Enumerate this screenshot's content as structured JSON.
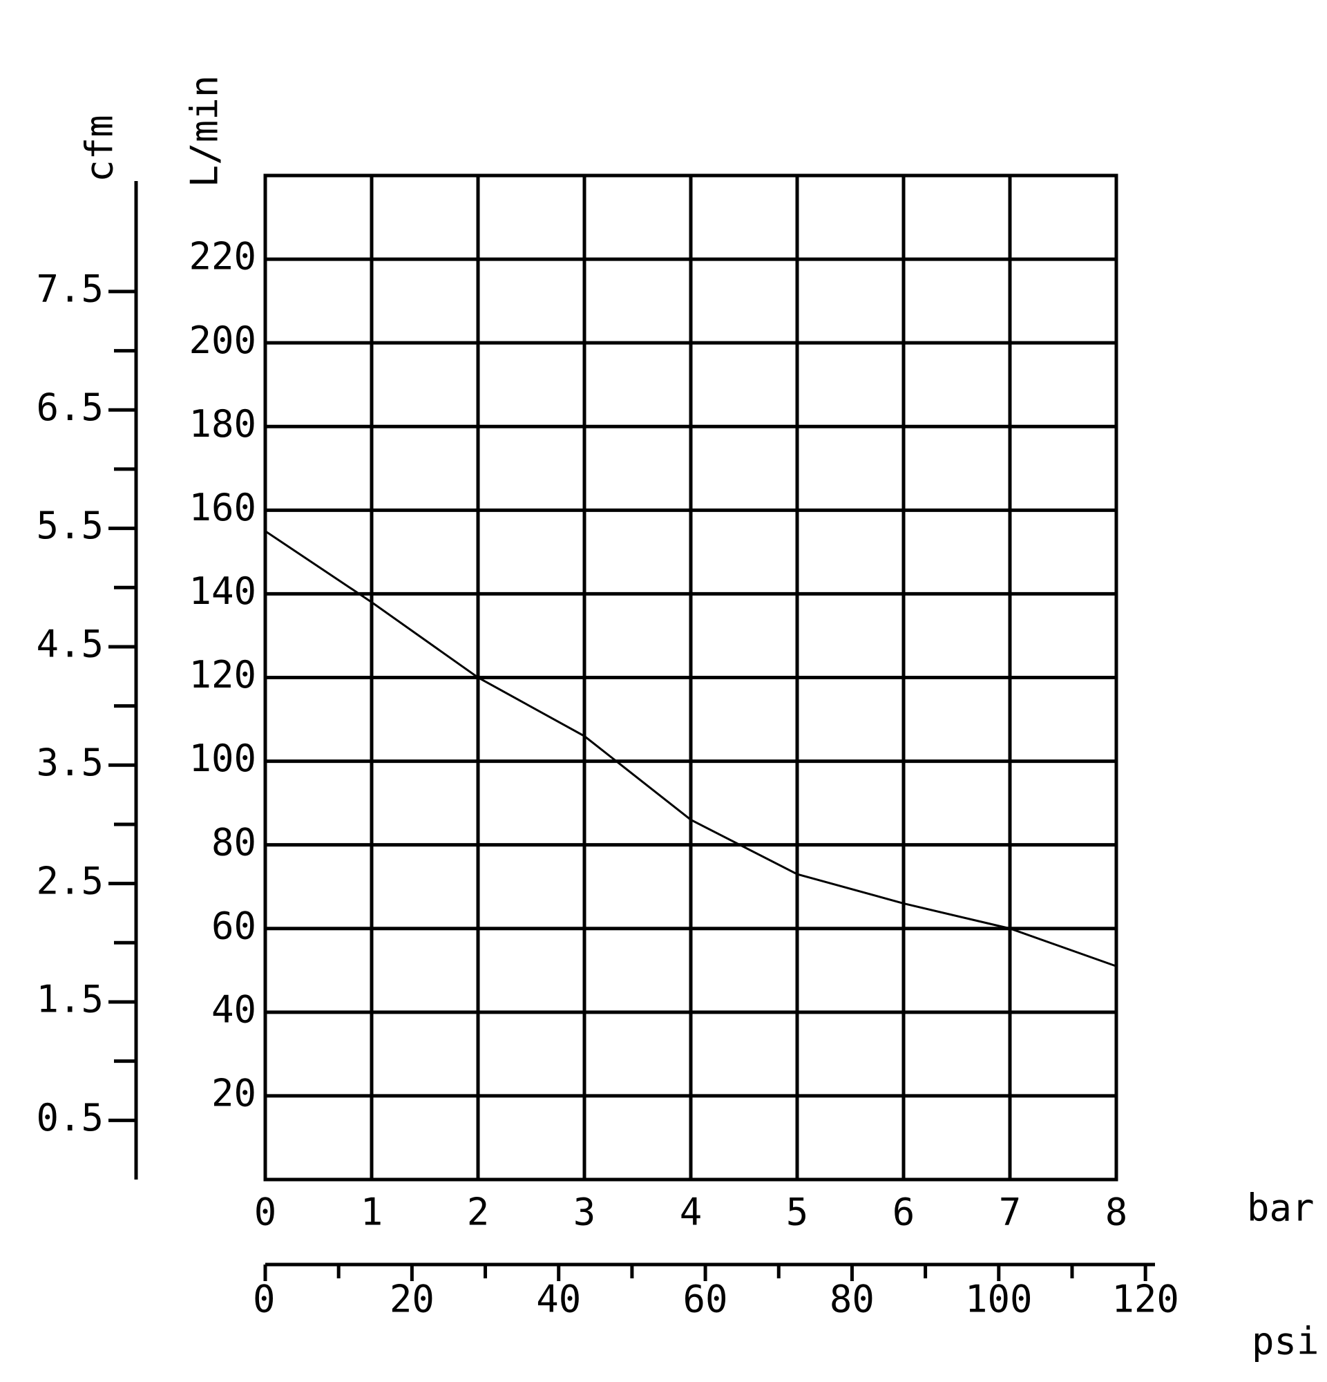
{
  "chart_data": {
    "type": "line",
    "xlabel": "bar",
    "ylabel": "L/min",
    "y2label": "cfm",
    "x2label": "psi",
    "x": [
      0,
      1,
      2,
      3,
      4,
      5,
      6,
      7,
      8
    ],
    "values": [
      155,
      138,
      120,
      106,
      86,
      73,
      66,
      60,
      51
    ],
    "color": "#000000",
    "xlim": [
      0,
      8
    ],
    "xticks": [
      0,
      1,
      2,
      3,
      4,
      5,
      6,
      7,
      8
    ],
    "ylim": [
      0,
      240
    ],
    "yticks": [
      20,
      40,
      60,
      80,
      100,
      120,
      140,
      160,
      180,
      200,
      220
    ],
    "y2lim": [
      0,
      8.48
    ],
    "y2ticks": [
      0.5,
      1.5,
      2.5,
      3.5,
      4.5,
      5.5,
      6.5,
      7.5
    ],
    "y2minor_ticks": [
      1,
      2,
      3,
      4,
      5,
      6,
      7
    ],
    "x2lim": [
      0,
      116.03
    ],
    "x2ticks": [
      0,
      20,
      40,
      60,
      80,
      100,
      120
    ],
    "x2minor_ticks": [
      10,
      30,
      50,
      70,
      90,
      110
    ],
    "grid": true
  }
}
